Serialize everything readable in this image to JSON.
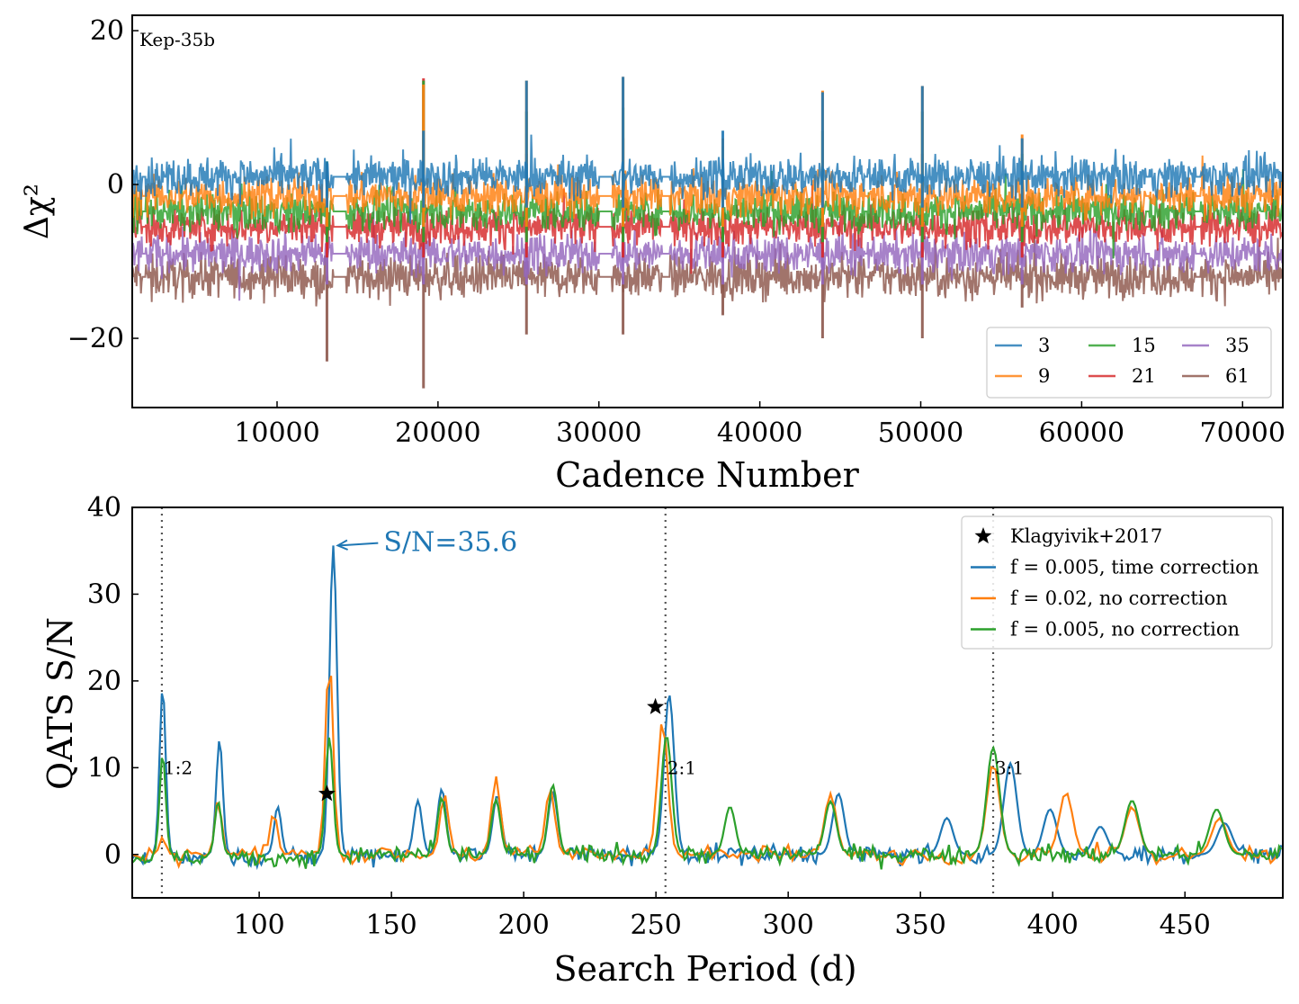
{
  "colors": {
    "3": "#1f77b4",
    "9": "#ff7f0e",
    "15": "#2ca02c",
    "21": "#d62728",
    "35": "#9467bd",
    "61": "#8c564b",
    "blue": "#1f77b4",
    "orange": "#ff7f0e",
    "green": "#2ca02c",
    "refline": "#555555"
  },
  "chart_data": [
    {
      "type": "line",
      "panel": "top",
      "annotation": "Kep-35b",
      "xlabel": "Cadence Number",
      "ylabel": "Δχ²",
      "xlim": [
        1000,
        72500
      ],
      "ylim": [
        -29,
        22
      ],
      "xticks": [
        10000,
        20000,
        30000,
        40000,
        50000,
        60000,
        70000
      ],
      "xtick_labels": [
        "10000",
        "20000",
        "30000",
        "40000",
        "50000",
        "60000",
        "70000"
      ],
      "yticks": [
        20,
        0,
        -20
      ],
      "ytick_labels": [
        "20",
        "0",
        "−20"
      ],
      "legend": {
        "placement": "lower-right",
        "columns": 3,
        "entries": [
          "3",
          "9",
          "15",
          "21",
          "35",
          "61"
        ]
      },
      "data_gaps": [
        [
          1600,
          1850
        ],
        [
          3000,
          3150
        ],
        [
          13500,
          14300
        ],
        [
          30000,
          30800
        ],
        [
          33900,
          34400
        ],
        [
          46500,
          46700
        ],
        [
          57900,
          58000
        ],
        [
          64000,
          64200
        ],
        [
          67100,
          67400
        ],
        [
          71200,
          71300
        ]
      ],
      "series": [
        {
          "name": "3",
          "baseline": 1,
          "noise": 1.7,
          "min_at_transits": -2,
          "transit_peaks": [
            [
              13100,
              3
            ],
            [
              19100,
              7
            ],
            [
              25500,
              13.5
            ],
            [
              31500,
              14
            ],
            [
              37700,
              7
            ],
            [
              43900,
              12
            ],
            [
              50100,
              12.8
            ],
            [
              56300,
              6
            ]
          ]
        },
        {
          "name": "9",
          "baseline": -1.5,
          "noise": 1.7,
          "transit_peaks": [
            [
              13100,
              2
            ],
            [
              19100,
              13
            ],
            [
              25500,
              13.5
            ],
            [
              31500,
              14
            ],
            [
              37700,
              6
            ],
            [
              43900,
              12.2
            ],
            [
              50100,
              12.8
            ],
            [
              56300,
              6.5
            ]
          ]
        },
        {
          "name": "15",
          "baseline": -3.5,
          "noise": 1.7,
          "transit_peaks": [
            [
              13100,
              3
            ],
            [
              19100,
              13.5
            ],
            [
              25500,
              9.5
            ],
            [
              31500,
              10
            ],
            [
              37700,
              5
            ],
            [
              43900,
              7
            ],
            [
              50100,
              9.5
            ],
            [
              56300,
              4
            ]
          ]
        },
        {
          "name": "21",
          "baseline": -5.5,
          "noise": 1.7,
          "transit_peaks": [
            [
              13100,
              2
            ],
            [
              19100,
              13.8
            ],
            [
              25500,
              4
            ],
            [
              31500,
              6
            ],
            [
              37700,
              3
            ],
            [
              43900,
              2
            ],
            [
              50100,
              4
            ],
            [
              56300,
              1
            ]
          ]
        },
        {
          "name": "35",
          "baseline": -9,
          "noise": 1.7,
          "transit_peaks": [
            [
              13100,
              -3
            ],
            [
              19100,
              6
            ],
            [
              25500,
              -3
            ],
            [
              31500,
              -2
            ],
            [
              37700,
              -4
            ],
            [
              43900,
              -4
            ],
            [
              50100,
              -2
            ],
            [
              56300,
              -4
            ]
          ]
        },
        {
          "name": "61",
          "baseline": -12,
          "noise": 1.8,
          "transit_troughs": [
            [
              13100,
              -23
            ],
            [
              19100,
              -26.5
            ],
            [
              25500,
              -19.5
            ],
            [
              31500,
              -19.5
            ],
            [
              37700,
              -17
            ],
            [
              43900,
              -20
            ],
            [
              50100,
              -20
            ],
            [
              56300,
              -16
            ]
          ]
        }
      ]
    },
    {
      "type": "line",
      "panel": "bottom",
      "xlabel": "Search Period (d)",
      "ylabel": "QATS S/N",
      "xlim": [
        52,
        487
      ],
      "ylim": [
        -5,
        40
      ],
      "xticks": [
        100,
        150,
        200,
        250,
        300,
        350,
        400,
        450
      ],
      "xtick_labels": [
        "100",
        "150",
        "200",
        "250",
        "300",
        "350",
        "400",
        "450"
      ],
      "yticks": [
        0,
        10,
        20,
        30,
        40
      ],
      "ytick_labels": [
        "0",
        "10",
        "20",
        "30",
        "40"
      ],
      "legend": {
        "placement": "top-right",
        "entries": [
          "Klagyivik+2017",
          "f = 0.005, time correction",
          "f = 0.02, no correction",
          "f = 0.005, no correction"
        ]
      },
      "reference_lines": [
        {
          "x": 63.2,
          "label": "1:2"
        },
        {
          "x": 253.6,
          "label": "2:1"
        },
        {
          "x": 377.5,
          "label": "3:1"
        }
      ],
      "markers_Klagyivik2017": [
        {
          "x": 125.6,
          "y": 7.0
        },
        {
          "x": 249.8,
          "y": 17.0
        }
      ],
      "peak_annotation": {
        "text": "S/N=35.6",
        "x": 128.0,
        "y": 35.6,
        "text_x": 147,
        "text_y": 36.0
      },
      "series": [
        {
          "name": "f = 0.005, time correction",
          "peaks": [
            [
              63.5,
              19.2
            ],
            [
              85,
              13.2
            ],
            [
              107,
              5.5
            ],
            [
              128,
              35.6
            ],
            [
              160,
              6.2
            ],
            [
              169,
              7.5
            ],
            [
              190,
              6.8
            ],
            [
              211,
              7.2
            ],
            [
              255,
              18.4
            ],
            [
              319,
              7
            ],
            [
              360,
              4.2
            ],
            [
              384,
              10.5
            ],
            [
              399,
              5.2
            ],
            [
              418,
              3.2
            ],
            [
              465,
              3.6
            ]
          ],
          "noise": 1.0
        },
        {
          "name": "f = 0.02, no correction",
          "peaks": [
            [
              63.5,
              2
            ],
            [
              84.5,
              6.5
            ],
            [
              105.5,
              5
            ],
            [
              126.5,
              23.3
            ],
            [
              170,
              7
            ],
            [
              189.5,
              9
            ],
            [
              210,
              7.7
            ],
            [
              252.5,
              15.5
            ],
            [
              316,
              7
            ],
            [
              377.5,
              10.5
            ],
            [
              405,
              7.2
            ],
            [
              430,
              5.5
            ],
            [
              463,
              4.2
            ]
          ],
          "noise": 0.9
        },
        {
          "name": "f = 0.005, no correction",
          "peaks": [
            [
              63.5,
              11.5
            ],
            [
              84.5,
              6.1
            ],
            [
              126.5,
              13.5
            ],
            [
              169,
              6.5
            ],
            [
              189.5,
              6.3
            ],
            [
              211,
              8
            ],
            [
              254,
              13.7
            ],
            [
              278,
              5.5
            ],
            [
              316,
              6.1
            ],
            [
              377.5,
              12.3
            ],
            [
              430,
              6.2
            ],
            [
              462,
              5.2
            ]
          ],
          "noise": 1.0
        }
      ]
    }
  ]
}
